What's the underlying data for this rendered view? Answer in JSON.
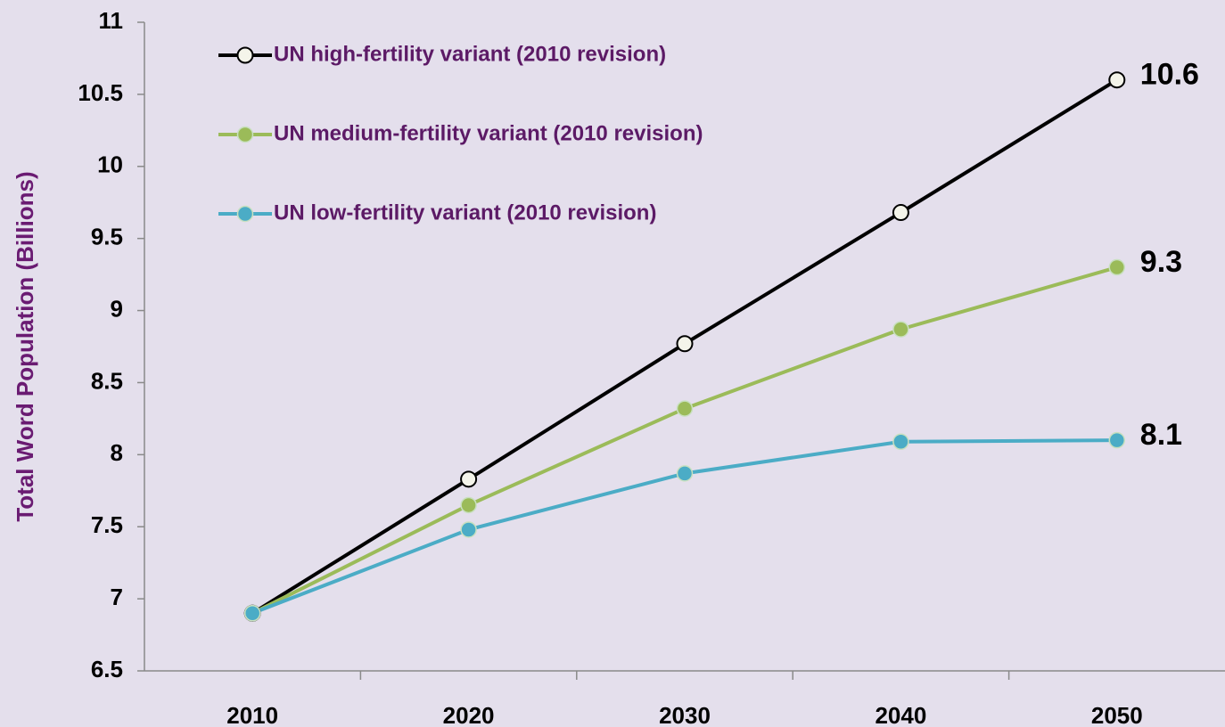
{
  "chart_data": {
    "type": "line",
    "y_label": "Total Word Population (Billions)",
    "categories": [
      "2010",
      "2020",
      "2030",
      "2040",
      "2050"
    ],
    "series": [
      {
        "name": "UN high-fertility variant (2010 revision)",
        "color": "#000000",
        "marker_fill": "#f4f4ea",
        "values": [
          6.9,
          7.83,
          8.77,
          9.68,
          10.6
        ]
      },
      {
        "name": "UN medium-fertility variant (2010 revision)",
        "color": "#9bbb59",
        "marker_fill": "#9bbb59",
        "values": [
          6.9,
          7.65,
          8.32,
          8.87,
          9.3
        ]
      },
      {
        "name": "UN low-fertility variant (2010 revision)",
        "color": "#4bacc6",
        "marker_fill": "#4bacc6",
        "values": [
          6.9,
          7.48,
          7.87,
          8.09,
          8.1
        ]
      }
    ],
    "ylim": [
      6.5,
      11
    ],
    "yticks": [
      6.5,
      7,
      7.5,
      8,
      8.5,
      9,
      9.5,
      10,
      10.5,
      11
    ],
    "label_last_point": true,
    "legend": "top-left"
  }
}
